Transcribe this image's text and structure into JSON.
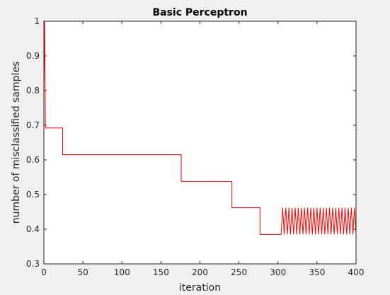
{
  "chart_data": {
    "type": "line",
    "title": "Basic Perceptron",
    "xlabel": "iteration",
    "ylabel": "number of misclassified samples",
    "xlim": [
      0,
      400
    ],
    "ylim": [
      0.3,
      1
    ],
    "xticks": [
      0,
      50,
      100,
      150,
      200,
      250,
      300,
      350,
      400
    ],
    "yticks": [
      0.3,
      0.4,
      0.5,
      0.6,
      0.7,
      0.8,
      0.9,
      1
    ],
    "grid": false,
    "series": [
      {
        "color": "#ff0000",
        "segments": [
          {
            "x": [
              0,
              1,
              2,
              3
            ],
            "y": [
              0.8,
              1,
              0.692,
              0.692
            ]
          },
          {
            "x": [
              3,
              24,
              24,
              176,
              176,
              241,
              241,
              277,
              277,
              304
            ],
            "y": [
              0.692,
              0.692,
              0.615,
              0.615,
              0.538,
              0.538,
              0.462,
              0.462,
              0.385,
              0.385
            ]
          },
          {
            "oscillation": {
              "x_start": 304,
              "x_end": 400,
              "period": 4,
              "low": 0.385,
              "high": 0.462
            }
          }
        ]
      }
    ]
  }
}
